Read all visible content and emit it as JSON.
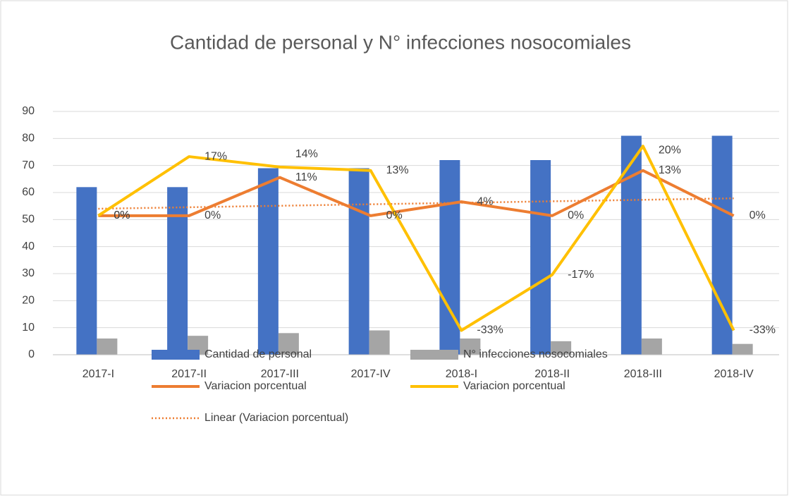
{
  "chart_data": {
    "type": "bar",
    "title": "Cantidad de personal y N° infecciones nosocomiales",
    "categories": [
      "2017-I",
      "2017-II",
      "2017-III",
      "2017-IV",
      "2018-I",
      "2018-II",
      "2018-III",
      "2018-IV"
    ],
    "ylim": [
      0,
      90
    ],
    "yticks": [
      0,
      10,
      20,
      30,
      40,
      50,
      60,
      70,
      80,
      90
    ],
    "y2lim": [
      -40,
      30
    ],
    "grid": true,
    "legend": "bottom",
    "series": [
      {
        "name": "Cantidad de personal",
        "type": "bar",
        "color": "#4472c4",
        "values": [
          62,
          62,
          69,
          69,
          72,
          72,
          81,
          81
        ]
      },
      {
        "name": "N° infecciones nosocomiales",
        "type": "bar",
        "color": "#a5a5a5",
        "values": [
          6,
          7,
          8,
          9,
          6,
          5,
          6,
          4
        ]
      },
      {
        "name": "Variacion porcentual",
        "type": "line",
        "axis": "y2",
        "color": "#ed7d31",
        "values": [
          0,
          0,
          11,
          0,
          4,
          0,
          13,
          0
        ],
        "value_labels": [
          "0%",
          "0%",
          "11%",
          "0%",
          "4%",
          "0%",
          "13%",
          "0%"
        ],
        "trendline": {
          "name": "Linear (Variacion porcentual)",
          "type": "linear",
          "color": "#ed7d31"
        }
      },
      {
        "name": "Variacion porcentual",
        "type": "line",
        "axis": "y2",
        "color": "#ffc000",
        "values": [
          0,
          17,
          14,
          13,
          -33,
          -17,
          20,
          -33
        ],
        "value_labels": [
          "0%",
          "17%",
          "14%",
          "13%",
          "-33%",
          "-17%",
          "20%",
          "-33%"
        ]
      }
    ]
  }
}
